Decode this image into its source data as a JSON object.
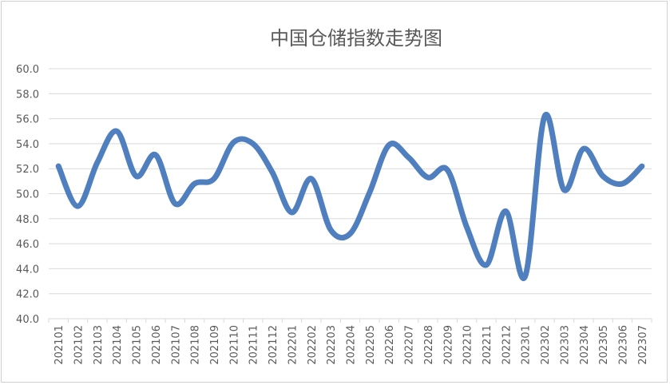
{
  "chart_data": {
    "type": "line",
    "title": "中国仓储指数走势图",
    "xlabel": "",
    "ylabel": "",
    "ylim": [
      40.0,
      60.0
    ],
    "ytick_step": 2.0,
    "grid": true,
    "legend": "none",
    "line_color": "#4f7fbf",
    "categories": [
      "202101",
      "202102",
      "202103",
      "202104",
      "202105",
      "202106",
      "202107",
      "202108",
      "202109",
      "202110",
      "202111",
      "202112",
      "202201",
      "202202",
      "202203",
      "202204",
      "202205",
      "202206",
      "202207",
      "202208",
      "202209",
      "202210",
      "202211",
      "202212",
      "202301",
      "202302",
      "202303",
      "202304",
      "202305",
      "202306",
      "202307"
    ],
    "series": [
      {
        "values": [
          52.2,
          49.0,
          52.5,
          55.0,
          51.4,
          53.1,
          49.2,
          50.8,
          51.2,
          54.1,
          54.0,
          51.7,
          48.5,
          51.2,
          47.1,
          46.8,
          50.1,
          53.9,
          52.9,
          51.3,
          51.9,
          47.3,
          44.3,
          48.6,
          43.4,
          56.2,
          50.3,
          53.6,
          51.4,
          50.8,
          52.2
        ]
      }
    ]
  }
}
